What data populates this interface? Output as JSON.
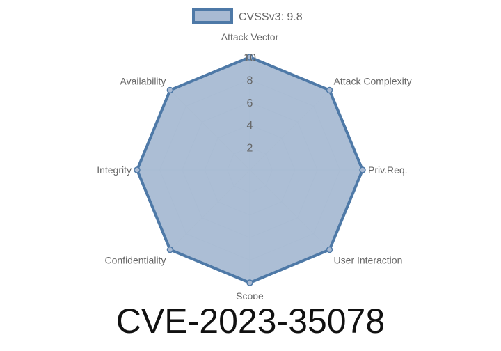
{
  "chart_data": {
    "type": "radar",
    "categories": [
      "Attack Vector",
      "Attack Complexity",
      "Priv.Req.",
      "User Interaction",
      "Scope",
      "Confidentiality",
      "Integrity",
      "Availability"
    ],
    "series": [
      {
        "name": "CVSSv3: 9.8",
        "values": [
          10,
          10,
          10,
          10,
          10,
          10,
          10,
          10
        ]
      }
    ],
    "rlim": [
      0,
      10
    ],
    "ticks": [
      "2",
      "4",
      "6",
      "8",
      "10"
    ],
    "grid": true,
    "legend": "top",
    "colors": {
      "line": "#4e79a7",
      "fill": "#a8bad3",
      "grid": "#c8ccd4"
    }
  },
  "footer": {
    "title": "CVE-2023-35078"
  }
}
